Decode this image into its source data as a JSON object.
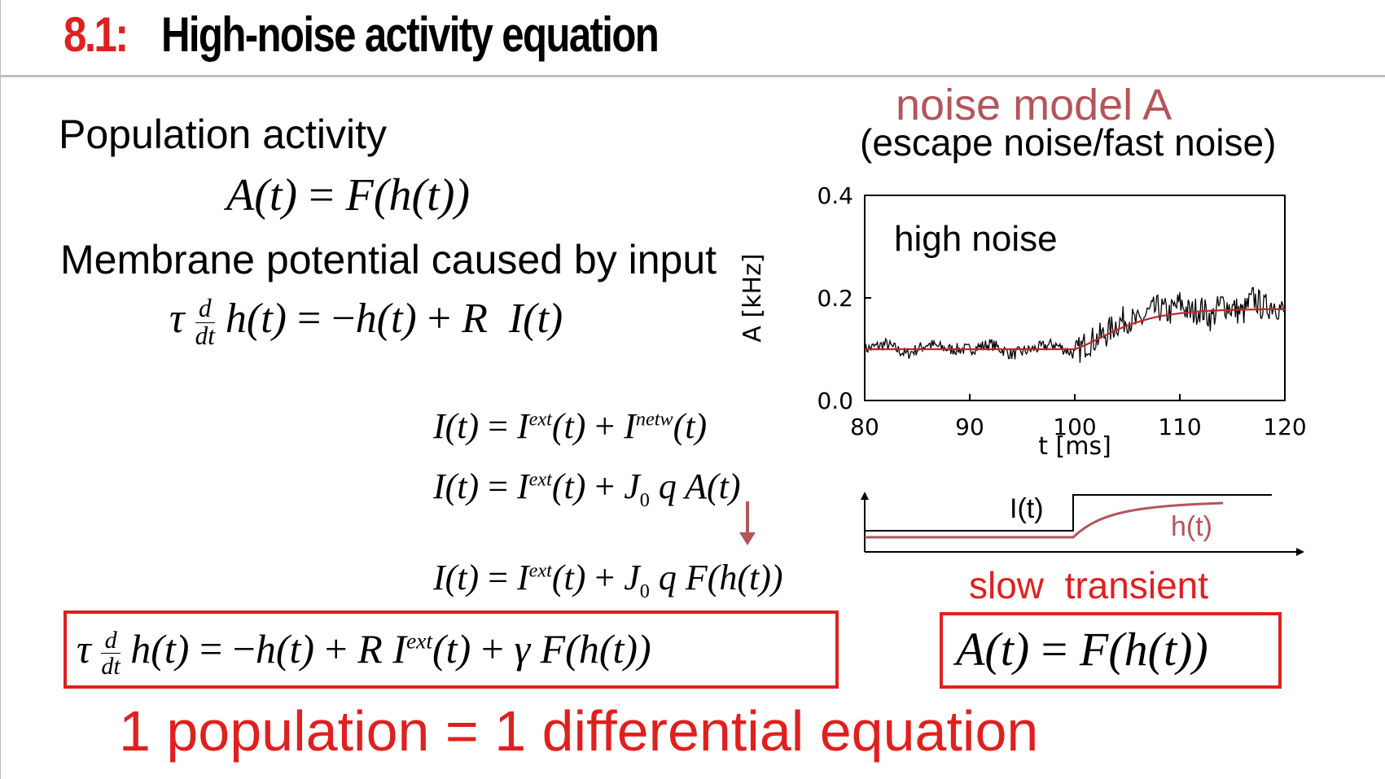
{
  "slide": {
    "title_number": "8.1:",
    "title_text": "High-noise activity equation"
  },
  "left": {
    "heading_population": "Population activity",
    "eq_activity": "A(t) = F(h(t))",
    "heading_membrane": "Membrane potential caused by input",
    "eq_membrane": "τ d/dt h(t) = −h(t) + R I(t)",
    "eq_input_1": "I(t) = I^ext(t) + I^netw(t)",
    "eq_input_2": "I(t) = I^ext(t) + J0 q A(t)",
    "eq_input_3": "I(t) = I^ext(t) + J0 q F(h(t))",
    "eq_boxed": "τ d/dt h(t) = −h(t) + R I^ext(t) + γ F(h(t))"
  },
  "right": {
    "noise_model_title": "noise model A",
    "noise_model_subtitle": "(escape noise/fast noise)",
    "plot_annotation": "high noise",
    "schematic_input_label": "I(t)",
    "schematic_h_label": "h(t)",
    "slow_transient": "slow  transient",
    "eq_boxed_right": "A(t) = F(h(t))"
  },
  "footer": {
    "conclusion": "1 population = 1 differential equation"
  },
  "colors": {
    "title_red": "#e0201e",
    "accent_rose": "#b5545a",
    "noise_trace": "#000000",
    "fit_curve": "#c0282a"
  },
  "chart_data": {
    "type": "line",
    "title": "",
    "xlabel": "t [ms]",
    "ylabel": "A [kHz]",
    "xlim": [
      80,
      120
    ],
    "ylim": [
      0.0,
      0.4
    ],
    "x_ticks": [
      "80",
      "90",
      "100",
      "110",
      "120"
    ],
    "y_ticks": [
      "0.0",
      "0.2",
      "0.4"
    ],
    "annotation": "high noise",
    "grid": false,
    "series": [
      {
        "x": [
          80,
          82,
          84,
          86,
          88,
          90,
          92,
          94,
          96,
          98,
          100,
          101,
          102,
          103,
          104,
          105,
          106,
          107,
          108,
          109,
          110,
          111,
          112,
          113,
          114,
          115,
          116,
          117,
          118,
          119,
          120
        ],
        "values": [
          0.1,
          0.11,
          0.09,
          0.11,
          0.1,
          0.1,
          0.11,
          0.09,
          0.1,
          0.11,
          0.09,
          0.11,
          0.12,
          0.13,
          0.15,
          0.16,
          0.15,
          0.17,
          0.18,
          0.17,
          0.19,
          0.17,
          0.18,
          0.16,
          0.19,
          0.18,
          0.17,
          0.2,
          0.18,
          0.19,
          0.17
        ]
      },
      {
        "x": [
          80,
          85,
          90,
          95,
          98,
          100,
          101,
          102,
          103,
          104,
          105,
          106,
          107,
          108,
          110,
          112,
          114,
          116,
          118,
          120
        ],
        "values": [
          0.1,
          0.1,
          0.1,
          0.1,
          0.1,
          0.1,
          0.108,
          0.118,
          0.128,
          0.138,
          0.146,
          0.153,
          0.159,
          0.164,
          0.17,
          0.174,
          0.176,
          0.177,
          0.178,
          0.178
        ]
      }
    ]
  }
}
